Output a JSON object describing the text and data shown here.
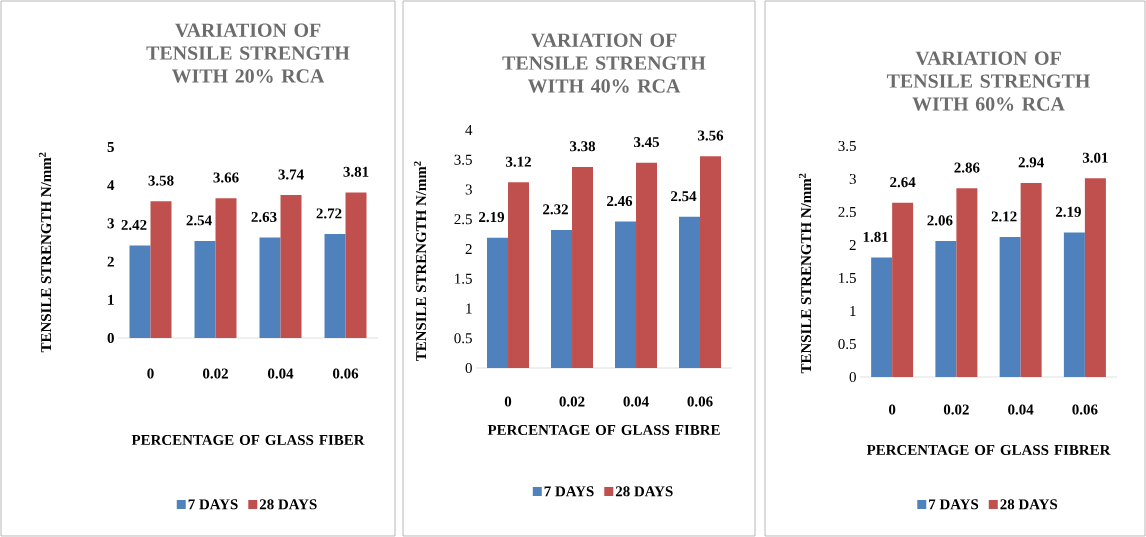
{
  "chart_data": [
    {
      "type": "bar",
      "title": "VARIATION OF TENSILE STRENGTH WITH 20% RCA",
      "xlabel": "PERCENTAGE OF GLASS FIBER",
      "ylabel": "TENSILE STRENGTH N/mm$^{2}$",
      "categories": [
        "0",
        "0.02",
        "0.04",
        "0.06"
      ],
      "series": [
        {
          "name": "7 DAYS",
          "color": "#4f81bd",
          "values": [
            2.42,
            2.54,
            2.63,
            2.72
          ]
        },
        {
          "name": "28 DAYS",
          "color": "#c0504d",
          "values": [
            3.58,
            3.66,
            3.74,
            3.81
          ]
        }
      ],
      "ylim": [
        0,
        5
      ],
      "yticks": [
        0,
        1,
        2,
        3,
        4,
        5
      ],
      "data_labels": true,
      "legend": "bottom"
    },
    {
      "type": "bar",
      "title": "VARIATION OF TENSILE STRENGTH WITH 40% RCA",
      "xlabel": "PERCENTAGE OF GLASS FIBRE",
      "ylabel": "TENSILE STRENGTH N/mm$^{2}$",
      "categories": [
        "0",
        "0.02",
        "0.04",
        "0.06"
      ],
      "series": [
        {
          "name": "7 DAYS",
          "color": "#4f81bd",
          "values": [
            2.19,
            2.32,
            2.46,
            2.54
          ]
        },
        {
          "name": "28 DAYS",
          "color": "#c0504d",
          "values": [
            3.12,
            3.38,
            3.45,
            3.56
          ]
        }
      ],
      "ylim": [
        0,
        4
      ],
      "yticks": [
        0,
        0.5,
        1,
        1.5,
        2,
        2.5,
        3,
        3.5,
        4
      ],
      "data_labels": true,
      "legend": "bottom"
    },
    {
      "type": "bar",
      "title": "VARIATION OF TENSILE STRENGTH WITH 60% RCA",
      "xlabel": "PERCENTAGE OF GLASS FIBRER",
      "ylabel": "TENSILE STRENGTH N/mm$^{2}$",
      "categories": [
        "0",
        "0.02",
        "0.04",
        "0.06"
      ],
      "series": [
        {
          "name": "7 DAYS",
          "color": "#4f81bd",
          "values": [
            1.81,
            2.06,
            2.12,
            2.19
          ]
        },
        {
          "name": "28 DAYS",
          "color": "#c0504d",
          "values": [
            2.64,
            2.86,
            2.94,
            3.01
          ]
        }
      ],
      "ylim": [
        0,
        3.5
      ],
      "yticks": [
        0,
        0.5,
        1,
        1.5,
        2,
        2.5,
        3,
        3.5
      ],
      "data_labels": true,
      "legend": "bottom"
    }
  ]
}
